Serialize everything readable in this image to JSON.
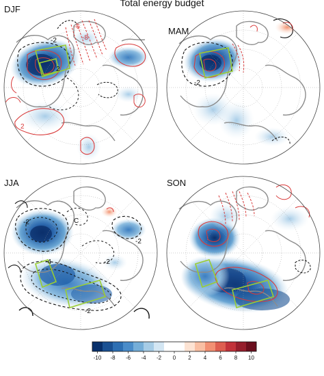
{
  "title": "Total energy budget",
  "panels": [
    {
      "label": "DJF",
      "contour_labels": [
        {
          "text": "-6",
          "color": "#d93a3a"
        },
        {
          "text": "-8",
          "color": "#d93a3a"
        },
        {
          "text": "-2",
          "color": "#111111"
        },
        {
          "text": "2",
          "color": "#111111"
        },
        {
          "text": "2",
          "color": "#d93a3a"
        }
      ]
    },
    {
      "label": "MAM",
      "contour_labels": [
        {
          "text": "-2",
          "color": "#111111"
        }
      ]
    },
    {
      "label": "JJA",
      "contour_labels": [
        {
          "text": "-2",
          "color": "#111111"
        },
        {
          "text": "C",
          "color": "#111111"
        },
        {
          "text": "-2",
          "color": "#111111"
        },
        {
          "text": "-4",
          "color": "#111111"
        },
        {
          "text": "-2",
          "color": "#111111"
        },
        {
          "text": "-2",
          "color": "#111111"
        }
      ]
    },
    {
      "label": "SON",
      "contour_labels": []
    }
  ],
  "colorbar": {
    "ticks": [
      "-10",
      "-8",
      "-6",
      "-4",
      "-2",
      "0",
      "2",
      "4",
      "6",
      "8",
      "10"
    ],
    "colors": [
      "#08306b",
      "#1a5193",
      "#2d6fb3",
      "#4a8cc9",
      "#75aed8",
      "#a6cce6",
      "#d3e6f3",
      "#ffffff",
      "#ffffff",
      "#fde3d3",
      "#f9bfa3",
      "#f29073",
      "#de5e50",
      "#c2323a",
      "#961e2c",
      "#6b0f1e"
    ]
  }
}
